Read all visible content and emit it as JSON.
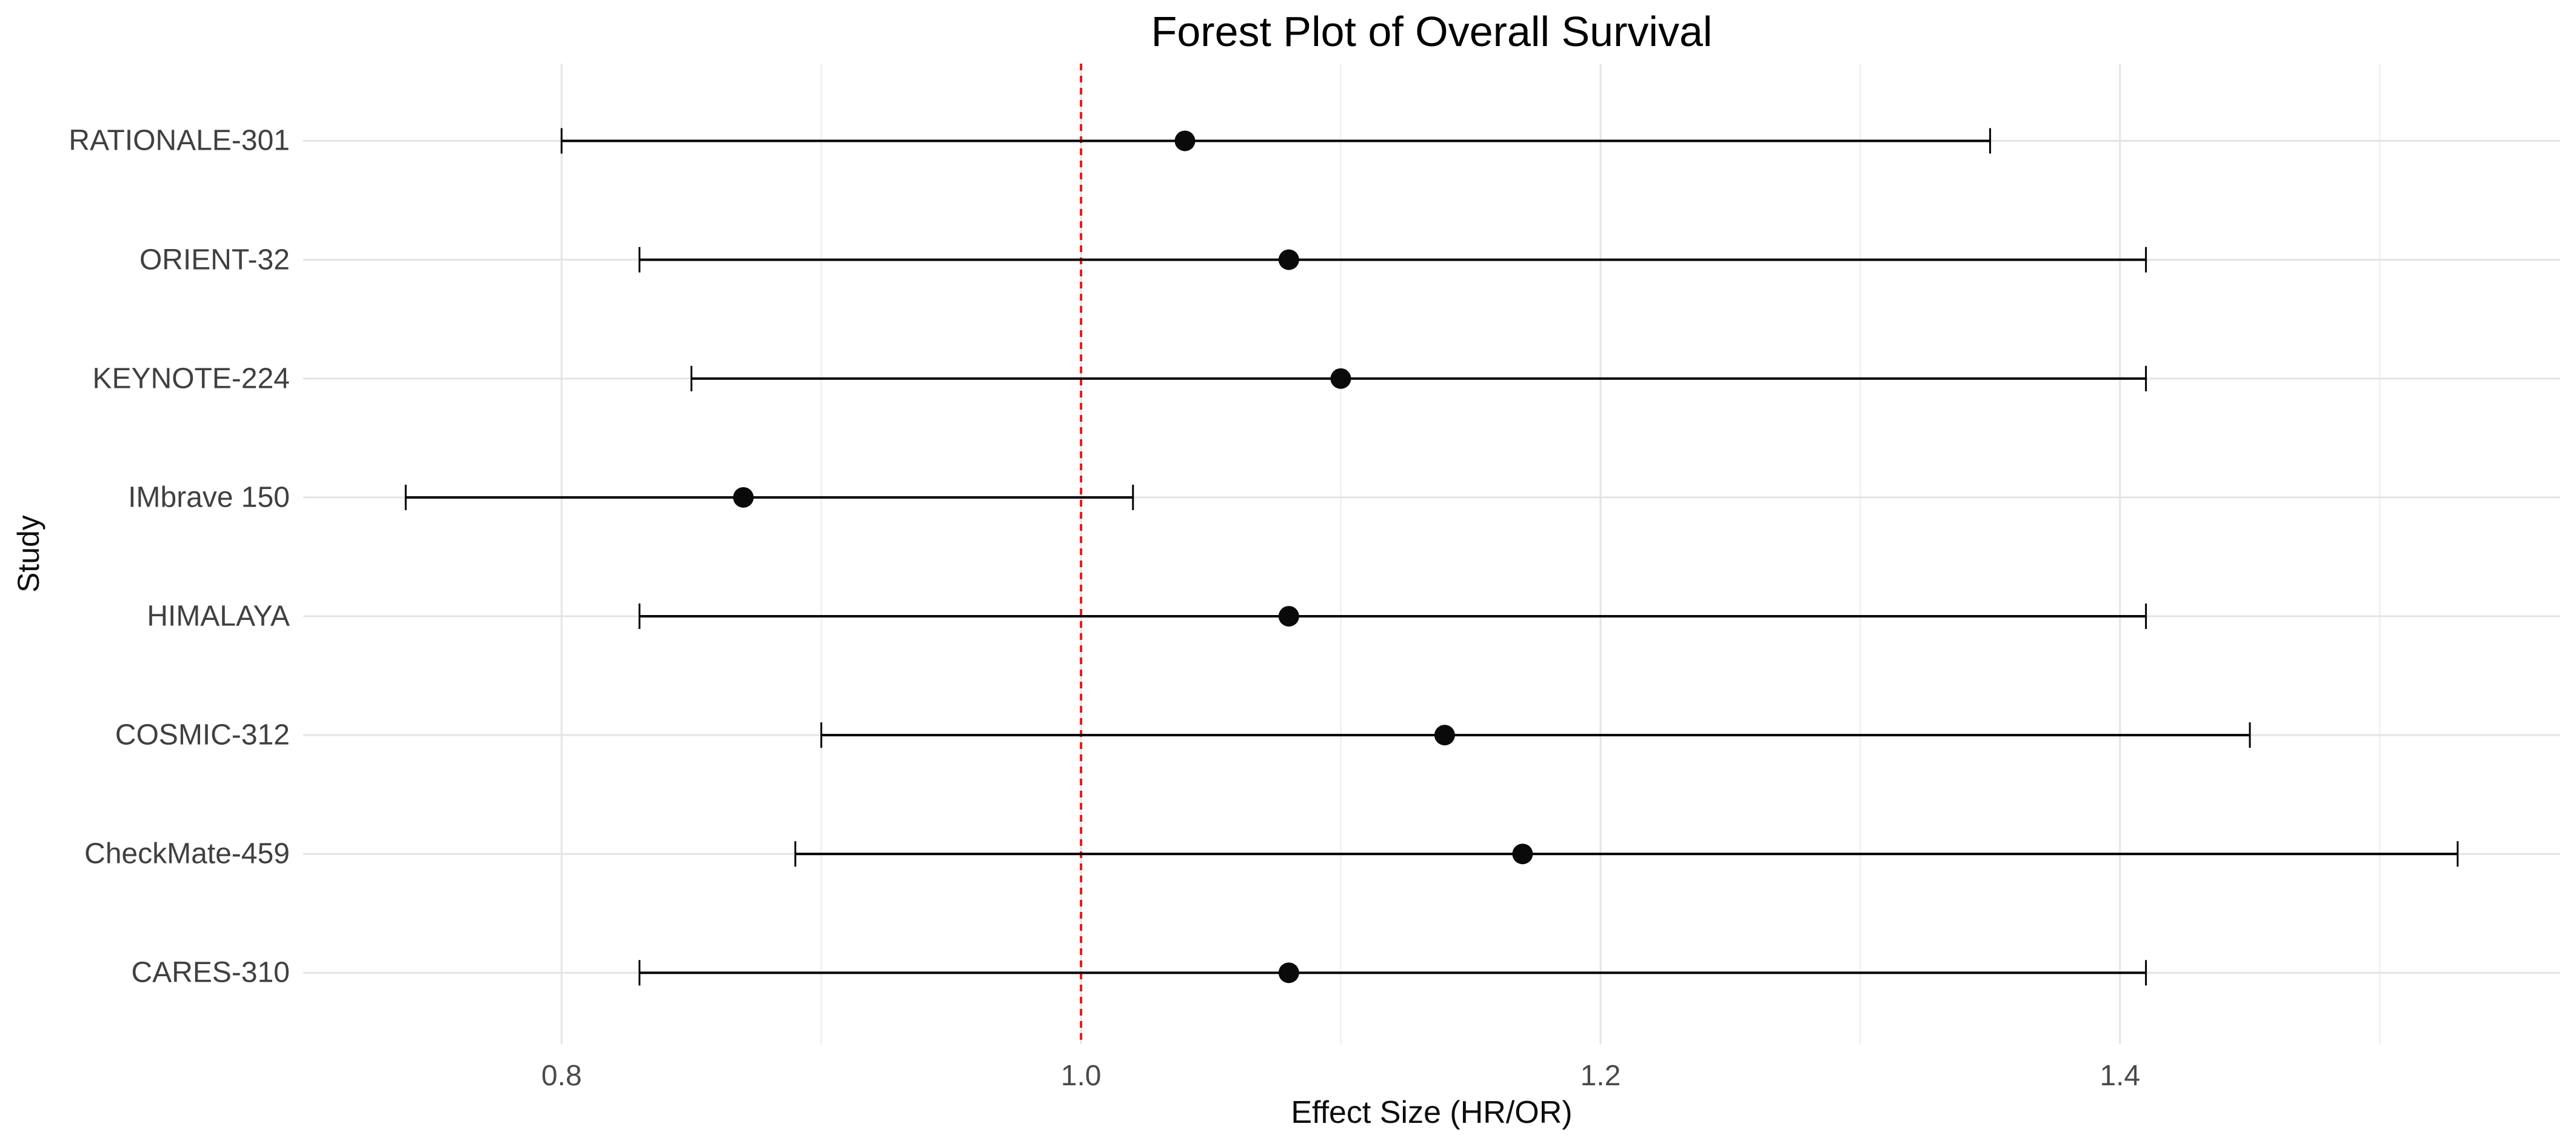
{
  "title": "Forest Plot of Overall Survival",
  "axes": {
    "x_title": "Effect Size (HR/OR)",
    "y_title": "Study",
    "x_tick_labels": [
      "0.8",
      "1.0",
      "1.2",
      "1.4"
    ],
    "x_tick_values": [
      0.8,
      1.0,
      1.2,
      1.4
    ],
    "x_minor_gridlines": [
      0.7,
      0.9,
      1.1,
      1.3,
      1.5
    ],
    "x_domain": [
      0.7005,
      1.5695
    ],
    "grid": "on"
  },
  "reference_line": {
    "x": 1.0,
    "color": "#ee1414",
    "style": "dashed"
  },
  "style": {
    "background": "#ffffff",
    "grid_major_color": "#e4e4e4",
    "grid_minor_color": "#efefef",
    "ci_color": "#000000",
    "point_color": "#0a0a0a",
    "tick_text_color": "#4a4a4a",
    "study_text_color": "#404040",
    "title_color": "#000000"
  },
  "chart_data": {
    "type": "scatter",
    "variant": "forest-plot",
    "title": "Forest Plot of Overall Survival",
    "xlabel": "Effect Size (HR/OR)",
    "ylabel": "Study",
    "xlim": [
      0.7005,
      1.5695
    ],
    "legend": "none",
    "categories": [
      "RATIONALE-301",
      "ORIENT-32",
      "KEYNOTE-224",
      "IMbrave 150",
      "HIMALAYA",
      "COSMIC-312",
      "CheckMate-459",
      "CARES-310"
    ],
    "series": [
      {
        "name": "Effect Size (HR/OR)",
        "values": [
          1.04,
          1.08,
          1.1,
          0.87,
          1.08,
          1.14,
          1.17,
          1.08
        ],
        "ci_low": [
          0.8,
          0.83,
          0.85,
          0.74,
          0.83,
          0.9,
          0.89,
          0.83
        ],
        "ci_high": [
          1.35,
          1.41,
          1.41,
          1.02,
          1.41,
          1.45,
          1.53,
          1.41
        ]
      }
    ],
    "reference_x": 1.0
  }
}
